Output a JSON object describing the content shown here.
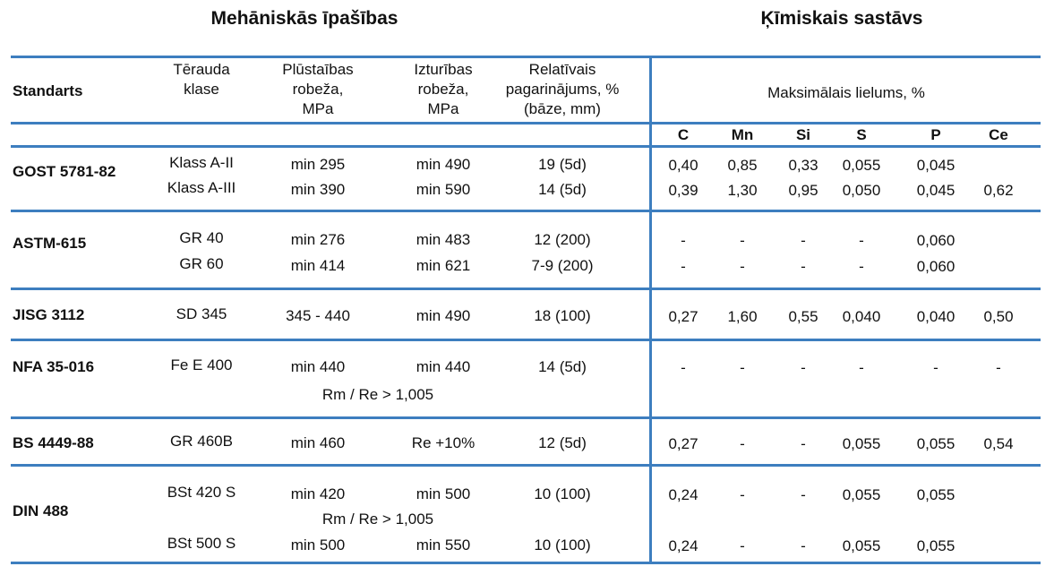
{
  "titles": {
    "mechanical": "Mehāniskās īpašības",
    "chemical": "Ķīmiskais sastāvs"
  },
  "headers": {
    "standard": "Standarts",
    "steel_class": [
      "Tērauda",
      "klase"
    ],
    "yield": [
      "Plūstaības",
      "robeža,",
      "MPa"
    ],
    "tensile": [
      "Izturības",
      "robeža,",
      "MPa"
    ],
    "elongation": [
      "Relatīvais",
      "pagarinājums, %",
      "(bāze, mm)"
    ],
    "max_value": "Maksimālais lielums, %",
    "elements": [
      "C",
      "Mn",
      "Si",
      "S",
      "P",
      "Ce"
    ]
  },
  "groups": [
    {
      "standard": "GOST 5781-82",
      "rows": [
        {
          "class": "Klass A-II",
          "yield": "min 295",
          "tensile": "min 490",
          "elong": "19 (5d)",
          "chem": [
            "0,40",
            "0,85",
            "0,33",
            "0,055",
            "0,045",
            ""
          ]
        },
        {
          "class": "Klass A-III",
          "yield": "min 390",
          "tensile": "min 590",
          "elong": "14 (5d)",
          "chem": [
            "0,39",
            "1,30",
            "0,95",
            "0,050",
            "0,045",
            "0,62"
          ]
        }
      ]
    },
    {
      "standard": "ASTM-615",
      "rows": [
        {
          "class": "GR 40",
          "yield": "min 276",
          "tensile": "min 483",
          "elong": "12 (200)",
          "chem": [
            "-",
            "-",
            "-",
            "-",
            "0,060",
            ""
          ]
        },
        {
          "class": "GR 60",
          "yield": "min 414",
          "tensile": "min 621",
          "elong": "7-9 (200)",
          "chem": [
            "-",
            "-",
            "-",
            "-",
            "0,060",
            ""
          ]
        }
      ]
    },
    {
      "standard": "JISG 3112",
      "rows": [
        {
          "class": "SD 345",
          "yield": "345 - 440",
          "tensile": "min 490",
          "elong": "18 (100)",
          "chem": [
            "0,27",
            "1,60",
            "0,55",
            "0,040",
            "0,040",
            "0,50"
          ]
        }
      ]
    },
    {
      "standard": "NFA 35-016",
      "rows": [
        {
          "class": "Fe E 400",
          "yield": "min 440",
          "tensile": "min 440",
          "elong": "14 (5d)",
          "chem": [
            "-",
            "-",
            "-",
            "-",
            "-",
            "-"
          ]
        }
      ],
      "note": "Rm / Re > 1,005"
    },
    {
      "standard": "BS 4449-88",
      "rows": [
        {
          "class": "GR 460B",
          "yield": "min 460",
          "tensile": "Re +10%",
          "elong": "12 (5d)",
          "chem": [
            "0,27",
            "-",
            "-",
            "0,055",
            "0,055",
            "0,54"
          ]
        }
      ]
    },
    {
      "standard": "DIN 488",
      "rows": [
        {
          "class": "BSt 420 S",
          "yield": "min 420",
          "tensile": "min 500",
          "elong": "10 (100)",
          "chem": [
            "0,24",
            "-",
            "-",
            "0,055",
            "0,055",
            ""
          ]
        },
        {
          "class": "BSt 500 S",
          "yield": "min 500",
          "tensile": "min 550",
          "elong": "10 (100)",
          "chem": [
            "0,24",
            "-",
            "-",
            "0,055",
            "0,055",
            ""
          ]
        }
      ],
      "note": "Rm / Re > 1,005"
    },
    {
      "standard": "",
      "rows": []
    }
  ]
}
